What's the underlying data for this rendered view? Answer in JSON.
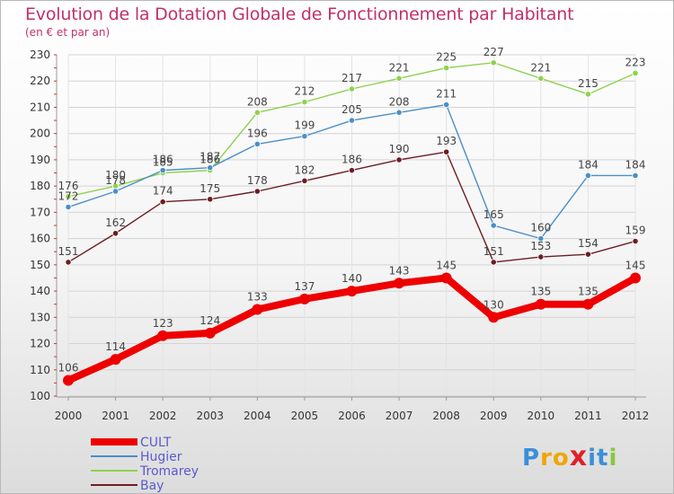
{
  "chart_data": {
    "type": "line",
    "title": "Evolution de la Dotation Globale de Fonctionnement par Habitant",
    "subtitle": "(en € et par an)",
    "x": [
      "2000",
      "2001",
      "2002",
      "2003",
      "2004",
      "2005",
      "2006",
      "2007",
      "2008",
      "2009",
      "2010",
      "2011",
      "2012"
    ],
    "ylim": [
      100,
      230
    ],
    "yticks": [
      100,
      110,
      120,
      130,
      140,
      150,
      160,
      170,
      180,
      190,
      200,
      210,
      220,
      230
    ],
    "series": [
      {
        "name": "Bay",
        "color": "#6b1e22",
        "values": [
          151,
          162,
          174,
          175,
          178,
          182,
          186,
          190,
          193,
          151,
          153,
          154,
          159
        ]
      },
      {
        "name": "Tromarey",
        "color": "#8fd14f",
        "values": [
          176,
          180,
          185,
          186,
          208,
          212,
          217,
          221,
          225,
          227,
          221,
          215,
          223
        ]
      },
      {
        "name": "Hugier",
        "color": "#4a8fc7",
        "values": [
          172,
          178,
          186,
          187,
          196,
          199,
          205,
          208,
          211,
          165,
          160,
          184,
          184
        ]
      },
      {
        "name": "CULT",
        "color": "#ee0000",
        "values": [
          106,
          114,
          123,
          124,
          133,
          137,
          140,
          143,
          145,
          130,
          135,
          135,
          145
        ]
      }
    ],
    "legend": {
      "position": "bottom-left",
      "order": [
        "CULT",
        "Hugier",
        "Tromarey",
        "Bay"
      ]
    }
  },
  "logo": {
    "text": "Proxiti",
    "letters": [
      "P",
      "r",
      "o",
      "x",
      "i",
      "t",
      "i"
    ],
    "colors": [
      "#3b8fd9",
      "#f2a500",
      "#f2a500",
      "#e0202a",
      "#3b8fd9",
      "#3b8fd9",
      "#8cc63f"
    ]
  }
}
